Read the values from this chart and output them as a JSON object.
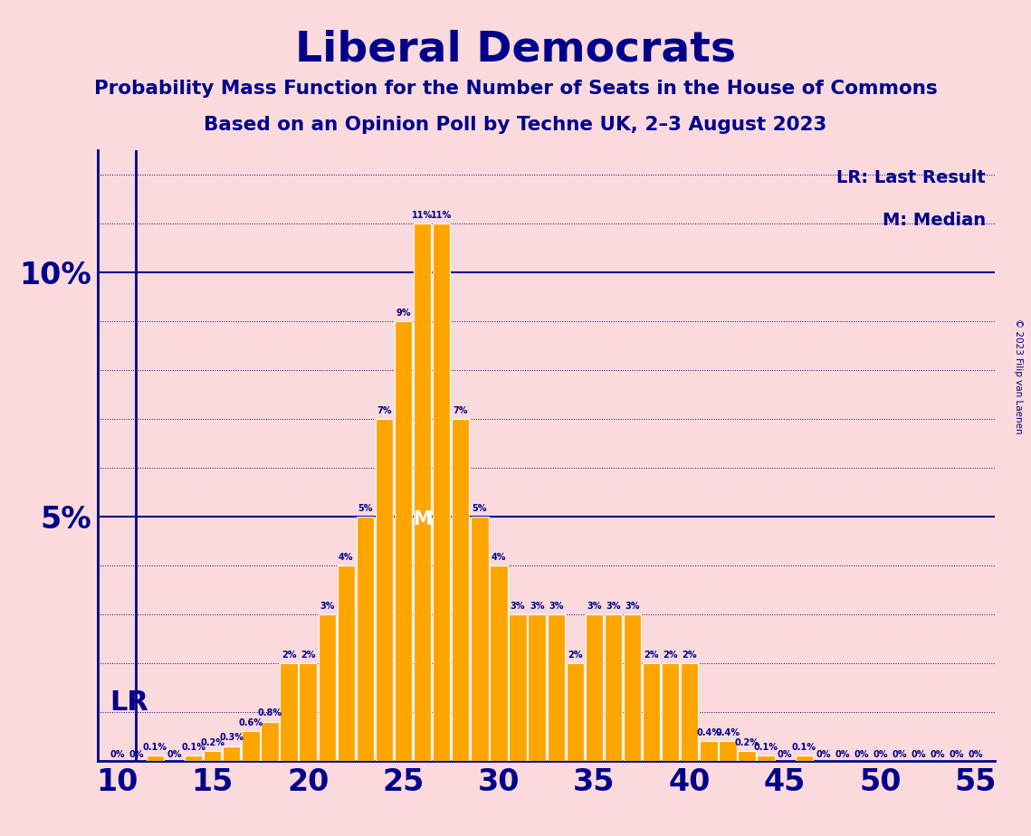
{
  "title": "Liberal Democrats",
  "subtitle1": "Probability Mass Function for the Number of Seats in the House of Commons",
  "subtitle2": "Based on an Opinion Poll by Techne UK, 2–3 August 2023",
  "copyright": "© 2023 Filip van Laenen",
  "background_color": "#FADADD",
  "bar_color": "#FFA500",
  "bar_edge_color": "#FFFFFF",
  "text_color": "#00008B",
  "axis_color": "#00008B",
  "grid_color": "#00008B",
  "lr_label": "LR",
  "lr_seats": 11,
  "median_seats": 26,
  "median_label": "M",
  "legend_lr": "LR: Last Result",
  "legend_m": "M: Median",
  "seats": [
    10,
    11,
    12,
    13,
    14,
    15,
    16,
    17,
    18,
    19,
    20,
    21,
    22,
    23,
    24,
    25,
    26,
    27,
    28,
    29,
    30,
    31,
    32,
    33,
    34,
    35,
    36,
    37,
    38,
    39,
    40,
    41,
    42,
    43,
    44,
    45,
    46,
    47,
    48,
    49,
    50,
    51,
    52,
    53,
    54,
    55
  ],
  "probabilities": [
    0.0,
    0.0,
    0.1,
    0.0,
    0.1,
    0.2,
    0.3,
    0.6,
    0.8,
    2.0,
    2.0,
    3.0,
    4.0,
    5.0,
    7.0,
    9.0,
    11.0,
    11.0,
    7.0,
    5.0,
    4.0,
    3.0,
    3.0,
    3.0,
    2.0,
    3.0,
    3.0,
    3.0,
    2.0,
    2.0,
    2.0,
    0.4,
    0.4,
    0.2,
    0.1,
    0.0,
    0.1,
    0.0,
    0.0,
    0.0,
    0.0,
    0.0,
    0.0,
    0.0,
    0.0,
    0.0
  ],
  "ylim": [
    0,
    12.5
  ],
  "xlim": [
    9.0,
    56.0
  ],
  "xticks": [
    10,
    15,
    20,
    25,
    30,
    35,
    40,
    45,
    50,
    55
  ]
}
